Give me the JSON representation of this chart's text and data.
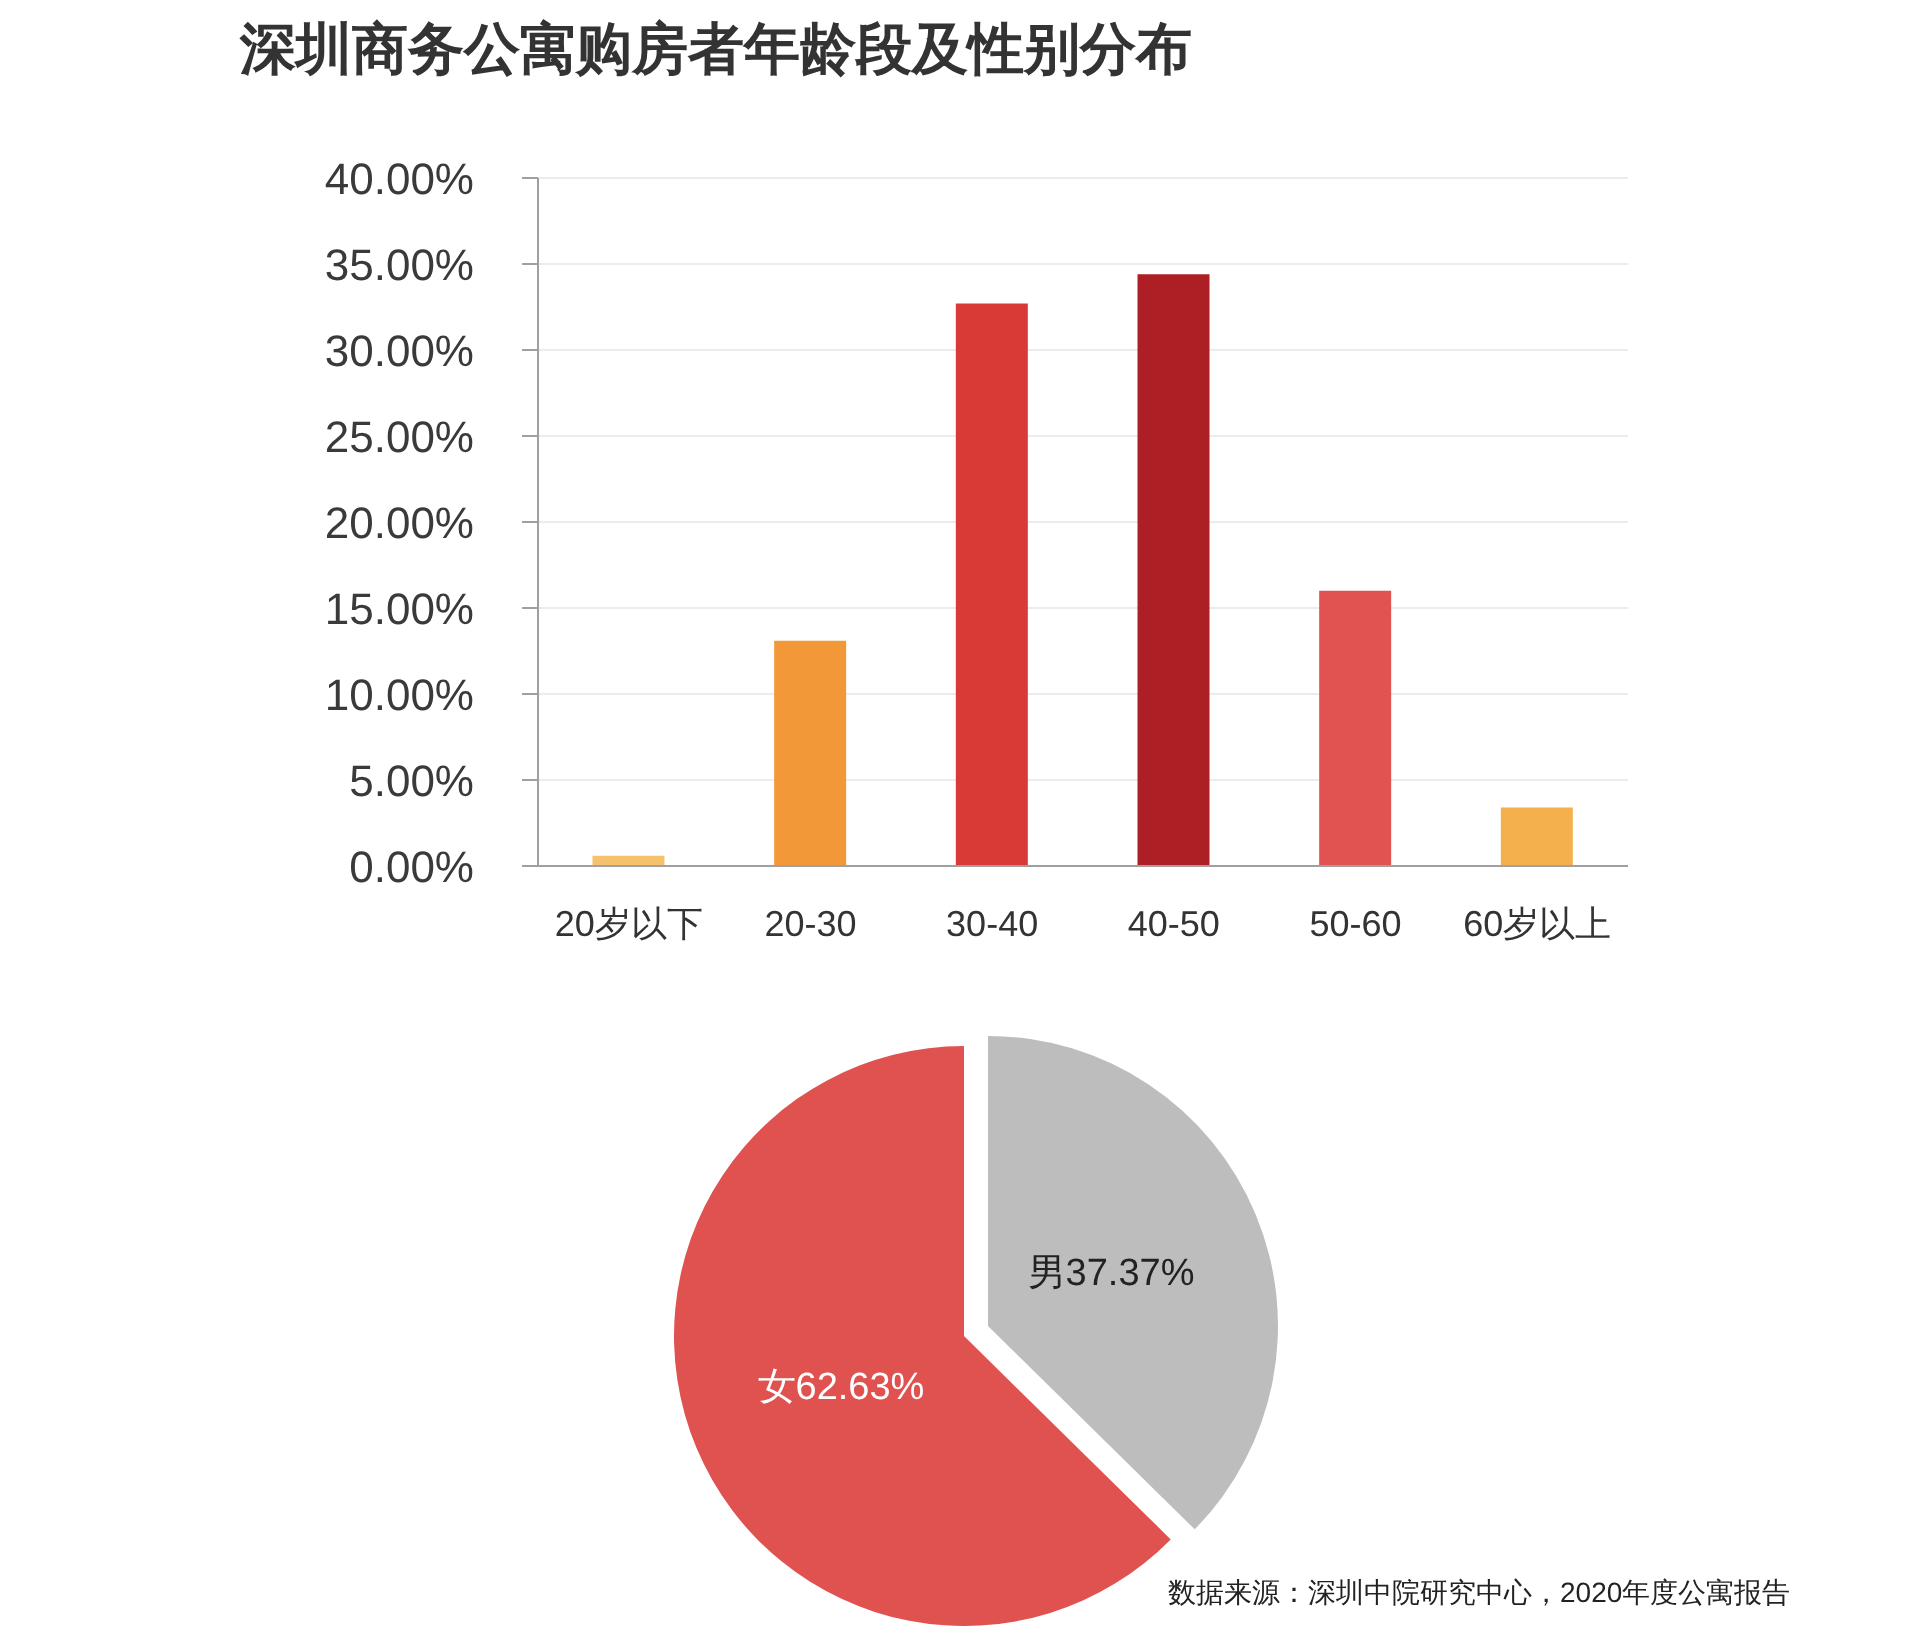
{
  "chart_data": [
    {
      "type": "bar",
      "title": "深圳商务公寓购房者年龄段及性别分布",
      "categories": [
        "20岁以下",
        "20-30",
        "30-40",
        "40-50",
        "50-60",
        "60岁以上"
      ],
      "values": [
        0.6,
        13.1,
        32.7,
        34.4,
        16.0,
        3.4
      ],
      "colors": [
        "#f5c16c",
        "#f39838",
        "#d93a35",
        "#ad1f24",
        "#e05350",
        "#f3b04c"
      ],
      "ylim": [
        0,
        40
      ],
      "yticks": [
        {
          "value": 0,
          "label": "0.00%"
        },
        {
          "value": 5,
          "label": "5.00%"
        },
        {
          "value": 10,
          "label": "10.00%"
        },
        {
          "value": 15,
          "label": "15.00%"
        },
        {
          "value": 20,
          "label": "20.00%"
        },
        {
          "value": 25,
          "label": "25.00%"
        },
        {
          "value": 30,
          "label": "30.00%"
        },
        {
          "value": 35,
          "label": "35.00%"
        },
        {
          "value": 40,
          "label": "40.00%"
        }
      ],
      "grid": "y"
    },
    {
      "type": "pie",
      "categories": [
        "男",
        "女"
      ],
      "values": [
        37.37,
        62.63
      ],
      "colors": [
        "#bdbdbd",
        "#e0524f"
      ],
      "value_labels": [
        "37.37%",
        "62.63%"
      ],
      "annotations": [
        "数据来源：深圳中院研究中心，2020年度公寓报告"
      ]
    }
  ]
}
